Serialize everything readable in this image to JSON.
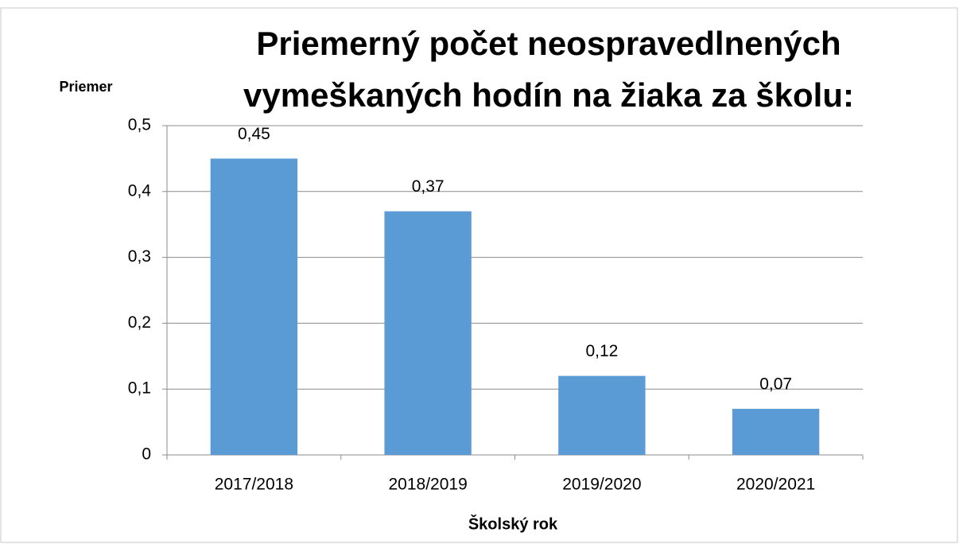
{
  "chart_data": {
    "type": "bar",
    "title": [
      "Priemerný počet neospravedlnených",
      "vymeškaných hodín na žiaka za školu:"
    ],
    "y_label": "Priemer",
    "x_label": "Školský rok",
    "categories": [
      "2017/2018",
      "2018/2019",
      "2019/2020",
      "2020/2021"
    ],
    "values": [
      0.45,
      0.37,
      0.12,
      0.07
    ],
    "value_labels": [
      "0,45",
      "0,37",
      "0,12",
      "0,07"
    ],
    "color": "#5b9bd5",
    "ylim": [
      0,
      0.5
    ],
    "yticks": [
      0,
      {
        "value": 0.1,
        "label": "0,1"
      },
      {
        "value": 0.2,
        "label": "0,2"
      },
      {
        "value": 0.3,
        "label": "0,3"
      },
      {
        "value": 0.4,
        "label": "0,4"
      },
      {
        "value": 0.5,
        "label": "0,5"
      }
    ],
    "grid": true
  }
}
